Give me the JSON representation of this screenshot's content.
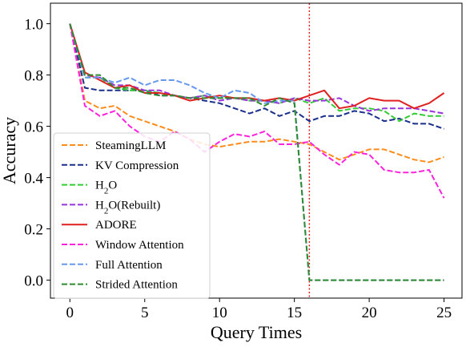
{
  "chart_data": {
    "type": "line",
    "title": "",
    "xlabel": "Query Times",
    "ylabel": "Accuracy",
    "xlim": [
      -1.3,
      26.2
    ],
    "ylim": [
      -0.07,
      1.08
    ],
    "xticks": [
      0,
      5,
      10,
      15,
      20,
      25
    ],
    "yticks": [
      0.0,
      0.2,
      0.4,
      0.6,
      0.8,
      1.0
    ],
    "ytick_labels": [
      "0.0",
      "0.2",
      "0.4",
      "0.6",
      "0.8",
      "1.0"
    ],
    "grid": false,
    "legend_position": "lower-left",
    "annotations": [
      {
        "type": "vline",
        "x": 16,
        "color": "#e02020",
        "style": "dotted"
      }
    ],
    "x": [
      0,
      1,
      2,
      3,
      4,
      5,
      6,
      7,
      8,
      9,
      10,
      11,
      12,
      13,
      14,
      15,
      16,
      17,
      18,
      19,
      20,
      21,
      22,
      23,
      24,
      25
    ],
    "series": [
      {
        "name": "SteamingLLM",
        "color": "#ff8c1a",
        "dash": "dashed",
        "values": [
          1.0,
          0.7,
          0.67,
          0.68,
          0.64,
          0.62,
          0.6,
          0.58,
          0.55,
          0.53,
          0.52,
          0.53,
          0.54,
          0.54,
          0.55,
          0.54,
          0.53,
          0.5,
          0.47,
          0.49,
          0.51,
          0.51,
          0.49,
          0.47,
          0.46,
          0.48
        ]
      },
      {
        "name": "KV Compression",
        "color": "#1a2f8c",
        "dash": "dashed",
        "values": [
          1.0,
          0.75,
          0.74,
          0.74,
          0.74,
          0.74,
          0.72,
          0.72,
          0.71,
          0.7,
          0.69,
          0.67,
          0.65,
          0.67,
          0.64,
          0.66,
          0.62,
          0.64,
          0.64,
          0.66,
          0.65,
          0.62,
          0.63,
          0.61,
          0.61,
          0.59
        ]
      },
      {
        "name": "H$_2$O",
        "label": "H2O",
        "color": "#33cc33",
        "dash": "dashed",
        "values": [
          1.0,
          0.79,
          0.79,
          0.75,
          0.74,
          0.74,
          0.73,
          0.72,
          0.71,
          0.72,
          0.71,
          0.71,
          0.7,
          0.7,
          0.69,
          0.71,
          0.69,
          0.71,
          0.66,
          0.67,
          0.67,
          0.66,
          0.62,
          0.65,
          0.64,
          0.64
        ]
      },
      {
        "name": "H$_2$O(Rebuilt)",
        "label": "H2O(Rebuilt)",
        "color": "#9933dd",
        "dash": "dashed",
        "values": [
          1.0,
          0.8,
          0.79,
          0.76,
          0.76,
          0.74,
          0.74,
          0.72,
          0.71,
          0.72,
          0.7,
          0.71,
          0.7,
          0.7,
          0.69,
          0.71,
          0.7,
          0.7,
          0.71,
          0.68,
          0.66,
          0.67,
          0.67,
          0.67,
          0.66,
          0.65
        ]
      },
      {
        "name": "ADORE",
        "color": "#e02020",
        "dash": "solid",
        "values": [
          1.0,
          0.81,
          0.78,
          0.75,
          0.76,
          0.73,
          0.73,
          0.72,
          0.7,
          0.71,
          0.72,
          0.71,
          0.71,
          0.7,
          0.71,
          0.7,
          0.72,
          0.74,
          0.67,
          0.68,
          0.71,
          0.7,
          0.7,
          0.67,
          0.69,
          0.73
        ]
      },
      {
        "name": "Window Attention",
        "color": "#ff22dd",
        "dash": "dashed",
        "values": [
          1.0,
          0.68,
          0.64,
          0.66,
          0.6,
          0.56,
          0.54,
          0.58,
          0.55,
          0.5,
          0.54,
          0.57,
          0.56,
          0.58,
          0.53,
          0.53,
          0.54,
          0.49,
          0.45,
          0.5,
          0.49,
          0.43,
          0.42,
          0.42,
          0.43,
          0.32
        ]
      },
      {
        "name": "Full Attention",
        "color": "#6699ee",
        "dash": "dashed",
        "values": [
          1.0,
          0.79,
          0.79,
          0.77,
          0.79,
          0.76,
          0.78,
          0.78,
          0.76,
          0.73,
          0.71,
          0.74,
          0.73,
          0.69,
          0.7,
          0.7,
          0.0,
          0.0,
          0.0,
          0.0,
          0.0,
          0.0,
          0.0,
          0.0,
          0.0,
          0.0
        ]
      },
      {
        "name": "Strided Attention",
        "color": "#2e8b2e",
        "dash": "dashed",
        "values": [
          1.0,
          0.8,
          0.8,
          0.75,
          0.75,
          0.73,
          0.72,
          0.72,
          0.71,
          0.71,
          0.71,
          0.71,
          0.71,
          0.68,
          0.71,
          0.69,
          0.0,
          0.0,
          0.0,
          0.0,
          0.0,
          0.0,
          0.0,
          0.0,
          0.0,
          0.0
        ]
      }
    ]
  }
}
